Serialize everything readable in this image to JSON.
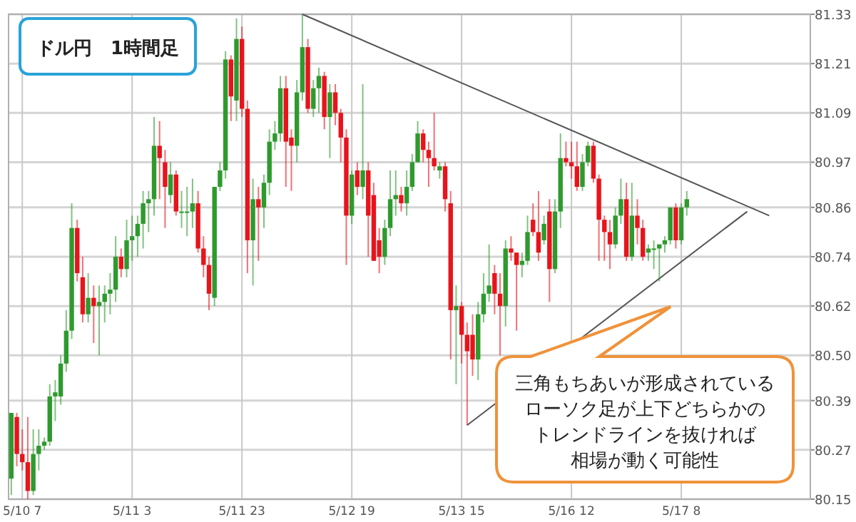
{
  "chart_data": {
    "type": "candlestick",
    "title": "ドル円　1時間足",
    "annotations": [
      "三角もちあいが形成されている",
      "ローソク足が上下どちらかの",
      "トレンドラインを抜ければ",
      "相場が動く可能性"
    ],
    "categories": [
      null,
      null,
      "5/10 7",
      null,
      null,
      null,
      null,
      null,
      null,
      null,
      null,
      null,
      null,
      null,
      null,
      null,
      null,
      null,
      null,
      null,
      null,
      null,
      "5/11 3",
      null,
      null,
      null,
      null,
      null,
      null,
      null,
      null,
      null,
      null,
      null,
      null,
      null,
      null,
      null,
      null,
      null,
      null,
      null,
      "5/11 23",
      null,
      null,
      null,
      null,
      null,
      null,
      null,
      null,
      null,
      null,
      null,
      null,
      null,
      null,
      null,
      null,
      null,
      null,
      null,
      "5/12 19",
      null,
      null,
      null,
      null,
      null,
      null,
      null,
      null,
      null,
      null,
      null,
      null,
      null,
      null,
      null,
      null,
      null,
      null,
      null,
      "5/13 15",
      null,
      null,
      null,
      null,
      null,
      null,
      null,
      null,
      null,
      null,
      null,
      null,
      null,
      null,
      null,
      null,
      null,
      null,
      null,
      "5/16 12",
      null,
      null,
      null,
      null,
      null,
      null,
      null,
      null,
      null,
      null,
      null,
      null,
      null,
      null,
      null,
      null,
      null,
      null,
      null,
      "5/17 8",
      null,
      null,
      null,
      null,
      null,
      null,
      null,
      null,
      null,
      null,
      null,
      null,
      null,
      null,
      null,
      null,
      null,
      null,
      null,
      null,
      null,
      null,
      null
    ],
    "ohlc": [
      [
        80.2,
        80.36,
        80.16,
        80.36
      ],
      [
        80.35,
        80.36,
        80.23,
        80.26
      ],
      [
        80.26,
        80.32,
        80.22,
        80.24
      ],
      [
        80.24,
        80.35,
        80.15,
        80.17
      ],
      [
        80.17,
        80.32,
        80.16,
        80.26
      ],
      [
        80.26,
        80.32,
        80.22,
        80.28
      ],
      [
        80.28,
        80.3,
        80.27,
        80.29
      ],
      [
        80.29,
        80.43,
        80.28,
        80.4
      ],
      [
        80.4,
        80.44,
        80.34,
        80.41
      ],
      [
        80.4,
        80.5,
        80.38,
        80.48
      ],
      [
        80.48,
        80.61,
        80.46,
        80.56
      ],
      [
        80.56,
        80.87,
        80.54,
        80.81
      ],
      [
        80.81,
        80.83,
        80.68,
        80.7
      ],
      [
        80.69,
        80.74,
        80.58,
        80.6
      ],
      [
        80.6,
        80.7,
        80.58,
        80.64
      ],
      [
        80.64,
        80.67,
        80.53,
        80.62
      ],
      [
        80.62,
        80.67,
        80.5,
        80.63
      ],
      [
        80.63,
        80.67,
        80.58,
        80.65
      ],
      [
        80.65,
        80.7,
        80.6,
        80.66
      ],
      [
        80.66,
        80.79,
        80.63,
        80.74
      ],
      [
        80.74,
        80.76,
        80.69,
        80.71
      ],
      [
        80.71,
        80.83,
        80.69,
        80.78
      ],
      [
        80.78,
        80.84,
        80.73,
        80.79
      ],
      [
        80.79,
        80.84,
        80.74,
        80.82
      ],
      [
        80.82,
        80.9,
        80.76,
        80.87
      ],
      [
        80.87,
        80.9,
        80.8,
        80.88
      ],
      [
        80.88,
        81.08,
        80.84,
        81.01
      ],
      [
        81.01,
        81.07,
        80.88,
        80.98
      ],
      [
        80.97,
        81.0,
        80.81,
        80.91
      ],
      [
        80.89,
        80.97,
        80.87,
        80.94
      ],
      [
        80.94,
        80.95,
        80.84,
        80.85
      ],
      [
        80.85,
        80.9,
        80.81,
        80.85
      ],
      [
        80.85,
        80.91,
        80.79,
        80.85
      ],
      [
        80.85,
        80.93,
        80.81,
        80.87
      ],
      [
        80.87,
        80.9,
        80.75,
        80.76
      ],
      [
        80.76,
        80.79,
        80.69,
        80.72
      ],
      [
        80.72,
        80.74,
        80.61,
        80.65
      ],
      [
        80.64,
        80.91,
        80.62,
        80.91
      ],
      [
        80.91,
        80.97,
        80.9,
        80.95
      ],
      [
        80.95,
        81.24,
        80.93,
        81.22
      ],
      [
        81.22,
        81.23,
        81.07,
        81.13
      ],
      [
        81.12,
        81.32,
        81.07,
        81.27
      ],
      [
        81.27,
        81.3,
        81.08,
        81.1
      ],
      [
        81.1,
        81.12,
        80.7,
        80.78
      ],
      [
        80.78,
        80.93,
        80.67,
        80.88
      ],
      [
        80.88,
        80.91,
        80.73,
        80.86
      ],
      [
        80.86,
        80.94,
        80.81,
        80.92
      ],
      [
        80.92,
        81.05,
        80.89,
        81.02
      ],
      [
        81.02,
        81.07,
        81.0,
        81.04
      ],
      [
        81.04,
        81.18,
        81.02,
        81.15
      ],
      [
        81.15,
        81.18,
        80.91,
        81.02
      ],
      [
        81.03,
        81.05,
        80.9,
        81.01
      ],
      [
        81.01,
        81.17,
        80.97,
        81.14
      ],
      [
        81.14,
        81.33,
        81.12,
        81.25
      ],
      [
        81.25,
        81.27,
        81.09,
        81.1
      ],
      [
        81.1,
        81.17,
        81.08,
        81.15
      ],
      [
        81.15,
        81.2,
        81.09,
        81.18
      ],
      [
        81.18,
        81.19,
        81.05,
        81.08
      ],
      [
        81.08,
        81.16,
        80.98,
        81.14
      ],
      [
        81.14,
        81.16,
        81.06,
        81.09
      ],
      [
        81.09,
        81.1,
        80.97,
        81.03
      ],
      [
        81.03,
        81.05,
        80.72,
        80.84
      ],
      [
        80.84,
        80.95,
        80.82,
        80.94
      ],
      [
        80.95,
        80.97,
        80.89,
        80.91
      ],
      [
        80.91,
        81.16,
        80.88,
        80.95
      ],
      [
        80.95,
        80.97,
        80.74,
        80.84
      ],
      [
        80.89,
        80.92,
        80.73,
        80.73
      ],
      [
        80.78,
        80.81,
        80.7,
        80.74
      ],
      [
        80.74,
        80.83,
        80.72,
        80.81
      ],
      [
        80.81,
        80.95,
        80.79,
        80.88
      ],
      [
        80.88,
        80.95,
        80.84,
        80.89
      ],
      [
        80.89,
        80.91,
        80.85,
        80.87
      ],
      [
        80.87,
        80.95,
        80.84,
        80.91
      ],
      [
        80.91,
        80.99,
        80.9,
        80.97
      ],
      [
        80.97,
        81.07,
        80.97,
        81.04
      ],
      [
        81.04,
        81.05,
        80.97,
        81.0
      ],
      [
        81.0,
        81.02,
        80.91,
        80.98
      ],
      [
        80.98,
        81.09,
        80.95,
        80.96
      ],
      [
        80.95,
        80.97,
        80.93,
        80.96
      ],
      [
        80.96,
        80.97,
        80.85,
        80.88
      ],
      [
        80.87,
        80.9,
        80.49,
        80.61
      ],
      [
        80.61,
        80.67,
        80.43,
        80.62
      ],
      [
        80.62,
        80.63,
        80.48,
        80.55
      ],
      [
        80.55,
        80.58,
        80.33,
        80.51
      ],
      [
        80.55,
        80.6,
        80.45,
        80.49
      ],
      [
        80.49,
        80.63,
        80.44,
        80.6
      ],
      [
        80.6,
        80.7,
        80.58,
        80.65
      ],
      [
        80.65,
        80.77,
        80.63,
        80.67
      ],
      [
        80.7,
        80.72,
        80.6,
        80.65
      ],
      [
        80.65,
        80.7,
        80.5,
        80.62
      ],
      [
        80.62,
        80.78,
        80.57,
        80.76
      ],
      [
        80.76,
        80.79,
        80.73,
        80.75
      ],
      [
        80.75,
        80.75,
        80.56,
        80.72
      ],
      [
        80.72,
        80.75,
        80.69,
        80.73
      ],
      [
        80.73,
        80.84,
        80.72,
        80.8
      ],
      [
        80.83,
        80.87,
        80.79,
        80.8
      ],
      [
        80.8,
        80.9,
        80.73,
        80.75
      ],
      [
        80.78,
        80.84,
        80.77,
        80.82
      ],
      [
        80.85,
        80.88,
        80.63,
        80.71
      ],
      [
        80.71,
        80.88,
        80.7,
        80.85
      ],
      [
        80.85,
        81.04,
        80.81,
        80.98
      ],
      [
        80.98,
        81.02,
        80.96,
        80.97
      ],
      [
        80.97,
        81.02,
        80.93,
        80.96
      ],
      [
        80.96,
        81.02,
        80.9,
        80.91
      ],
      [
        80.91,
        80.99,
        80.9,
        80.97
      ],
      [
        80.97,
        81.02,
        80.96,
        81.01
      ],
      [
        81.01,
        81.02,
        80.92,
        80.93
      ],
      [
        80.93,
        80.94,
        80.73,
        80.83
      ],
      [
        80.83,
        80.84,
        80.73,
        80.8
      ],
      [
        80.8,
        80.83,
        80.71,
        80.77
      ],
      [
        80.77,
        80.86,
        80.76,
        80.84
      ],
      [
        80.84,
        80.93,
        80.82,
        80.88
      ],
      [
        80.88,
        80.92,
        80.73,
        80.74
      ],
      [
        80.74,
        80.92,
        80.73,
        80.84
      ],
      [
        80.84,
        80.88,
        80.77,
        80.81
      ],
      [
        80.81,
        80.83,
        80.73,
        80.74
      ],
      [
        80.75,
        80.77,
        80.73,
        80.76
      ],
      [
        80.76,
        80.78,
        80.71,
        80.76
      ],
      [
        80.76,
        80.77,
        80.68,
        80.77
      ],
      [
        80.77,
        80.79,
        80.75,
        80.78
      ],
      [
        80.78,
        80.86,
        80.77,
        80.86
      ],
      [
        80.86,
        80.87,
        80.76,
        80.78
      ],
      [
        80.78,
        80.87,
        80.77,
        80.86
      ],
      [
        80.86,
        80.9,
        80.84,
        80.88
      ],
      null,
      null,
      null,
      null,
      null,
      null,
      null,
      null,
      null,
      null,
      null,
      null,
      null,
      null,
      null,
      null,
      null,
      null,
      null,
      null,
      null,
      null
    ],
    "series": [
      {
        "type": "line",
        "color": "#555555",
        "values": [
          null,
          null,
          null,
          null,
          null,
          null,
          null,
          null,
          null,
          null,
          null,
          null,
          null,
          null,
          null,
          null,
          null,
          null,
          null,
          null,
          null,
          null,
          null,
          null,
          null,
          null,
          null,
          null,
          null,
          null,
          null,
          null,
          null,
          null,
          null,
          null,
          null,
          null,
          null,
          null,
          null,
          null,
          null,
          null,
          null,
          null,
          null,
          null,
          null,
          null,
          null,
          null,
          null,
          81.33,
          null,
          null,
          null,
          null,
          null,
          null,
          null,
          null,
          null,
          null,
          null,
          null,
          null,
          null,
          null,
          null,
          null,
          null,
          null,
          null,
          null,
          null,
          null,
          null,
          null,
          null,
          null,
          null,
          null,
          null,
          null,
          null,
          null,
          null,
          null,
          null,
          null,
          null,
          null,
          null,
          null,
          null,
          null,
          null,
          null,
          null,
          null,
          null,
          null,
          null,
          null,
          null,
          null,
          null,
          null,
          null,
          null,
          null,
          null,
          null,
          null,
          null,
          null,
          null,
          null,
          null,
          null,
          null,
          null,
          null,
          null,
          null,
          null,
          null,
          null,
          null,
          null,
          null,
          null,
          null,
          null,
          null,
          null,
          null,
          80.84,
          null,
          null,
          null,
          null,
          null,
          null,
          null
        ]
      },
      {
        "type": "line",
        "color": "#555555",
        "values": [
          null,
          null,
          null,
          null,
          null,
          null,
          null,
          null,
          null,
          null,
          null,
          null,
          null,
          null,
          null,
          null,
          null,
          null,
          null,
          null,
          null,
          null,
          null,
          null,
          null,
          null,
          null,
          null,
          null,
          null,
          null,
          null,
          null,
          null,
          null,
          null,
          null,
          null,
          null,
          null,
          null,
          null,
          null,
          null,
          null,
          null,
          null,
          null,
          null,
          null,
          null,
          null,
          null,
          null,
          null,
          null,
          null,
          null,
          null,
          null,
          null,
          null,
          null,
          null,
          null,
          null,
          null,
          null,
          null,
          null,
          null,
          null,
          null,
          null,
          null,
          null,
          null,
          null,
          null,
          null,
          null,
          null,
          null,
          80.33,
          null,
          null,
          null,
          null,
          null,
          null,
          null,
          null,
          null,
          null,
          null,
          null,
          null,
          null,
          null,
          null,
          null,
          null,
          null,
          null,
          null,
          null,
          null,
          null,
          null,
          null,
          null,
          null,
          null,
          null,
          null,
          null,
          null,
          null,
          null,
          null,
          null,
          null,
          null,
          null,
          null,
          null,
          null,
          null,
          null,
          null,
          null,
          null,
          null,
          null,
          80.85,
          null,
          null,
          null,
          null,
          null,
          null,
          null,
          null,
          null,
          null,
          null
        ]
      }
    ],
    "ylim": [
      80.15,
      81.33
    ],
    "yticks": [
      80.15,
      80.27,
      80.39,
      {
        "value": 80.5,
        "label": "80.50"
      },
      80.62,
      80.74,
      80.86,
      80.97,
      81.09,
      81.21,
      81.33
    ],
    "grid": true
  }
}
